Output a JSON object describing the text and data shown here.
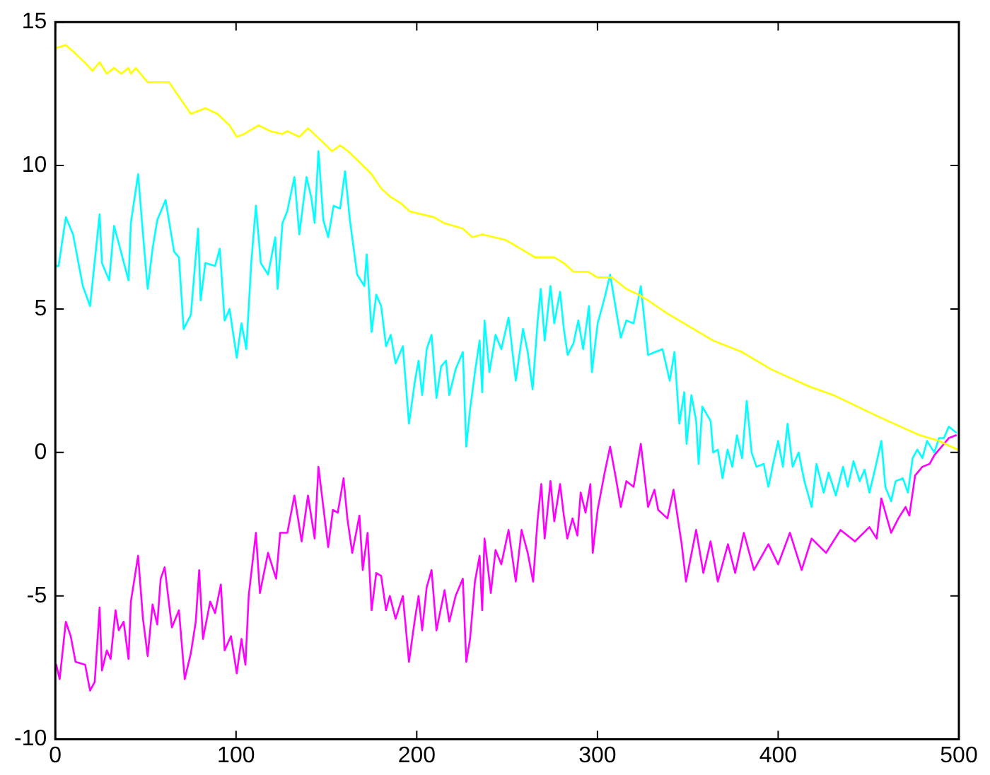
{
  "chart_data": {
    "type": "line",
    "xlim": [
      0,
      500
    ],
    "ylim": [
      -10,
      15
    ],
    "xticks": [
      0,
      100,
      200,
      300,
      400,
      500
    ],
    "yticks": [
      -10,
      -5,
      0,
      5,
      10,
      15
    ],
    "grid": false,
    "legend": false,
    "marker": "none",
    "line_style": "solid",
    "series": [
      {
        "color": "#ffff00",
        "x": [
          0.5,
          5.8,
          11.2,
          17.8,
          20.5,
          24.5,
          28.5,
          32.5,
          36.5,
          40.5,
          41.8,
          44.5,
          51.1,
          56.4,
          63,
          68.4,
          75,
          83,
          89.7,
          96.4,
          100.4,
          104.4,
          112.4,
          119,
          125.6,
          128.3,
          135,
          139.8,
          148.3,
          153.1,
          157.6,
          162,
          167,
          175,
          180.3,
          185.6,
          190.9,
          196.2,
          209.5,
          214.9,
          225.5,
          230.8,
          236.2,
          249.4,
          254.8,
          265.4,
          276.1,
          281.4,
          286.7,
          294.7,
          300,
          308,
          316,
          322.7,
          328,
          337.3,
          350.6,
          364,
          380,
          396,
          406.5,
          417.2,
          430.5,
          443.8,
          457.1,
          467.8,
          478.4,
          489,
          499.2
        ],
        "values": [
          14.1,
          14.2,
          13.9,
          13.5,
          13.3,
          13.6,
          13.2,
          13.4,
          13.2,
          13.4,
          13.2,
          13.4,
          12.9,
          12.9,
          12.9,
          12.4,
          11.8,
          12,
          11.8,
          11.4,
          11,
          11.1,
          11.4,
          11.2,
          11.1,
          11.2,
          11,
          11.3,
          10.8,
          10.5,
          10.7,
          10.5,
          10.2,
          9.7,
          9.2,
          8.9,
          8.7,
          8.4,
          8.2,
          8,
          7.8,
          7.5,
          7.6,
          7.4,
          7.2,
          6.8,
          6.8,
          6.6,
          6.3,
          6.3,
          6.1,
          6.1,
          5.7,
          5.5,
          5.3,
          4.9,
          4.4,
          3.9,
          3.5,
          2.9,
          2.6,
          2.3,
          2,
          1.6,
          1.2,
          0.9,
          0.6,
          0.4,
          0.1
        ]
      },
      {
        "color": "#00ffff",
        "x": [
          0,
          1.8,
          5.8,
          9.8,
          15.2,
          19.2,
          24.5,
          25.8,
          29.8,
          32.5,
          40.5,
          41.8,
          45.8,
          48.5,
          51.1,
          53.8,
          56.4,
          61,
          65.7,
          68.4,
          71,
          75,
          79,
          80.4,
          83,
          88.4,
          91,
          93.7,
          96.4,
          100.4,
          103,
          105.7,
          108.4,
          111,
          113.7,
          117.7,
          121.7,
          123,
          125.7,
          128.3,
          132.3,
          135,
          139,
          141.6,
          143.5,
          145.6,
          148.3,
          151,
          154,
          157.6,
          160.3,
          163,
          167,
          171,
          172.3,
          175,
          177.6,
          180.3,
          183,
          185.6,
          188.3,
          192.3,
          195.7,
          199,
          201,
          203,
          205.5,
          208.2,
          210.9,
          213.5,
          216.2,
          218,
          221.5,
          225.5,
          227.4,
          229.5,
          232.2,
          234.8,
          236.2,
          237.5,
          240.2,
          243.6,
          246.8,
          250.8,
          254.8,
          258.8,
          261.4,
          264.1,
          266.8,
          268.6,
          270.8,
          274,
          276.1,
          279.3,
          281.4,
          283.5,
          286.7,
          289.4,
          292.1,
          295.3,
          296.9,
          300.1,
          304,
          307,
          310.2,
          312.9,
          316,
          320,
          324,
          328,
          332,
          336,
          340,
          342.6,
          345.3,
          348,
          349.3,
          352,
          354.6,
          356,
          358,
          362.6,
          364,
          366.6,
          369.2,
          372,
          374.6,
          377.2,
          380,
          382.6,
          385.3,
          388,
          392,
          394.6,
          397.2,
          400,
          402.6,
          405.2,
          408,
          411.3,
          414.5,
          418.5,
          421.2,
          425.2,
          427.9,
          431.9,
          435.9,
          438.5,
          441.7,
          445.1,
          447.8,
          450.5,
          453.9,
          457.1,
          459.3,
          462.5,
          465,
          469,
          471.8,
          474.4,
          477,
          479.8,
          482.4,
          486.4,
          489,
          491.7,
          494.4,
          498.4
        ],
        "values": [
          6.5,
          6.5,
          8.2,
          7.6,
          5.8,
          5.1,
          8.3,
          6.6,
          6,
          7.9,
          6,
          8,
          9.7,
          7.6,
          5.7,
          7.1,
          8.1,
          8.8,
          7,
          6.8,
          4.3,
          4.8,
          7.8,
          5.3,
          6.6,
          6.5,
          7.1,
          4.6,
          5,
          3.3,
          4.5,
          3.6,
          6.6,
          8.6,
          6.6,
          6.2,
          7.5,
          5.7,
          8,
          8.4,
          9.6,
          7.6,
          9.6,
          8.9,
          8,
          10.5,
          8.1,
          7.5,
          8.6,
          8.5,
          9.8,
          8.1,
          6.2,
          5.8,
          6.9,
          4.2,
          5.5,
          5.1,
          3.7,
          4.1,
          3.1,
          3.7,
          1,
          2.5,
          3.2,
          2,
          3.6,
          4.1,
          1.9,
          3,
          3.2,
          2,
          2.9,
          3.5,
          0.2,
          1.5,
          2.8,
          3.9,
          2.1,
          4.6,
          2.8,
          4.1,
          3.6,
          4.7,
          2.5,
          4.3,
          3.5,
          2.2,
          4.5,
          5.7,
          3.9,
          5.8,
          4.5,
          5.6,
          4.3,
          3.4,
          3.8,
          4.6,
          3.6,
          5.1,
          2.8,
          4.5,
          5.4,
          6.2,
          5,
          4,
          4.6,
          4.5,
          5.8,
          3.4,
          3.5,
          3.6,
          2.5,
          3.5,
          1,
          2.1,
          0.3,
          2,
          1.1,
          -0.4,
          1.6,
          1.1,
          0,
          0.1,
          -0.9,
          0.1,
          -0.5,
          0.6,
          -0.2,
          1.8,
          0,
          -0.5,
          -0.4,
          -1.2,
          -0.4,
          0.4,
          -0.5,
          1,
          -0.5,
          0,
          -1,
          -1.9,
          -0.4,
          -1.4,
          -0.7,
          -1.5,
          -0.5,
          -1.2,
          -0.3,
          -1,
          -0.6,
          -1.4,
          -0.5,
          0.4,
          -1.2,
          -1.7,
          -1,
          -0.9,
          -1.4,
          -0.2,
          0.1,
          -0.2,
          0.4,
          0,
          0.5,
          0.5,
          0.9,
          0.7
        ]
      },
      {
        "color": "#ff00ff",
        "x": [
          0.5,
          2.4,
          5.8,
          8.5,
          11.2,
          16.5,
          19.2,
          21.8,
          24.5,
          25.8,
          28.5,
          30.6,
          33.3,
          35.1,
          37.8,
          40.5,
          41.8,
          45.8,
          48.5,
          51.1,
          53.8,
          56.4,
          58.3,
          60.5,
          64.5,
          68.4,
          71.6,
          75,
          77.7,
          79.6,
          81.7,
          85.7,
          88.4,
          91.6,
          93.7,
          97.2,
          100.4,
          103,
          105.2,
          107,
          111,
          113.2,
          117.7,
          122.2,
          124.4,
          128.4,
          132.3,
          136.3,
          139.8,
          143.5,
          145.6,
          148.3,
          151,
          153.6,
          156.3,
          159.5,
          161.6,
          164.3,
          168.3,
          170.1,
          172.8,
          175,
          177.6,
          180.3,
          183,
          185.1,
          188.3,
          192.3,
          195.7,
          199,
          201,
          203,
          205.5,
          208.2,
          210.9,
          215.4,
          218,
          221.5,
          225.5,
          227.4,
          229.5,
          232.2,
          234.8,
          236.2,
          237.5,
          241,
          243.6,
          246.8,
          250.8,
          254.8,
          258,
          261.4,
          264.4,
          266.8,
          268.9,
          270.8,
          274,
          276.1,
          279.3,
          281.4,
          283.3,
          286.2,
          288.9,
          290.7,
          293.4,
          296.1,
          297.4,
          300.1,
          304,
          307,
          310.2,
          312.9,
          316,
          320,
          324,
          328,
          331.5,
          333.6,
          338.7,
          342.1,
          346.6,
          349,
          354.6,
          358.6,
          362.6,
          366.6,
          372.2,
          376.2,
          381,
          386.6,
          394.6,
          400,
          406.5,
          413,
          418.5,
          426.5,
          434.5,
          442.5,
          450.5,
          454.5,
          457.1,
          462.5,
          466.5,
          470.5,
          472.6,
          475.8,
          479.8,
          483.8,
          486.4,
          490.4,
          494.4,
          498.4
        ],
        "values": [
          -7.4,
          -7.9,
          -5.9,
          -6.4,
          -7.3,
          -7.4,
          -8.3,
          -8,
          -5.4,
          -7.6,
          -6.9,
          -7.2,
          -5.5,
          -6.2,
          -5.9,
          -7.2,
          -5.2,
          -3.6,
          -5.8,
          -7.1,
          -5.3,
          -6,
          -4.4,
          -4,
          -6.1,
          -5.5,
          -7.9,
          -7,
          -5.9,
          -4.1,
          -6.5,
          -5.2,
          -5.6,
          -4.6,
          -6.9,
          -6.4,
          -7.7,
          -6.5,
          -7.4,
          -5,
          -2.8,
          -4.9,
          -3.5,
          -4.4,
          -2.8,
          -2.8,
          -1.5,
          -3.1,
          -1.5,
          -3,
          -0.5,
          -1.9,
          -3.3,
          -2,
          -2.1,
          -0.9,
          -2.3,
          -3.5,
          -2.2,
          -4.1,
          -2.8,
          -5.5,
          -4.2,
          -4.3,
          -5.5,
          -5,
          -5.8,
          -5,
          -7.3,
          -5.8,
          -5,
          -6.2,
          -4.7,
          -4.1,
          -6.2,
          -4.8,
          -5.9,
          -5,
          -4.4,
          -7.3,
          -6.5,
          -4.5,
          -3.6,
          -5.5,
          -3,
          -4.9,
          -3.4,
          -3.9,
          -2.7,
          -4.5,
          -2.7,
          -3.5,
          -4.5,
          -2.4,
          -1.1,
          -3,
          -1,
          -2.4,
          -1.1,
          -2.2,
          -3,
          -2.3,
          -2.9,
          -1.4,
          -2.1,
          -1.1,
          -3.5,
          -2,
          -0.7,
          0.2,
          -0.9,
          -1.9,
          -1,
          -1.2,
          0.3,
          -1.9,
          -1.3,
          -2,
          -2.3,
          -1.3,
          -3.2,
          -4.5,
          -2.7,
          -4.2,
          -3.1,
          -4.5,
          -3.2,
          -4.2,
          -2.8,
          -4.1,
          -3.2,
          -3.9,
          -2.8,
          -4.1,
          -3,
          -3.5,
          -2.7,
          -3.1,
          -2.6,
          -3,
          -1.6,
          -2.8,
          -2.3,
          -1.9,
          -2.2,
          -0.8,
          -0.5,
          -0.4,
          -0.1,
          0.2,
          0.5,
          0.6
        ]
      }
    ]
  }
}
